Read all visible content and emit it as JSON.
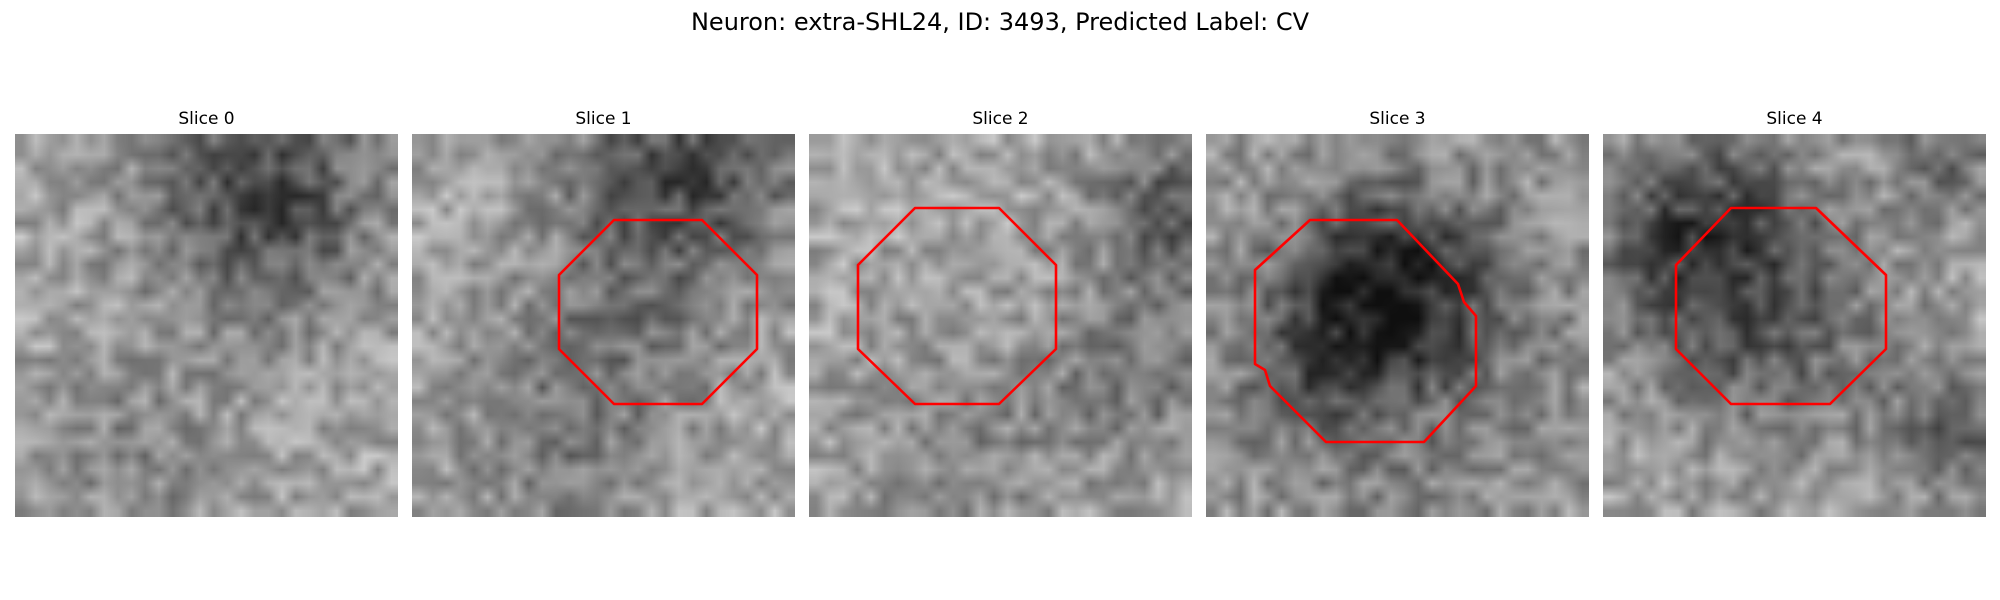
{
  "figure": {
    "title": "Neuron: extra-SHL24, ID: 3493, Predicted Label: CV"
  },
  "colors": {
    "outline": "#ff0000",
    "background": "#ffffff"
  },
  "slices": [
    {
      "title": "Slice 0",
      "has_outline": false
    },
    {
      "title": "Slice 1",
      "has_outline": true
    },
    {
      "title": "Slice 2",
      "has_outline": true
    },
    {
      "title": "Slice 3",
      "has_outline": true
    },
    {
      "title": "Slice 4",
      "has_outline": true
    }
  ]
}
